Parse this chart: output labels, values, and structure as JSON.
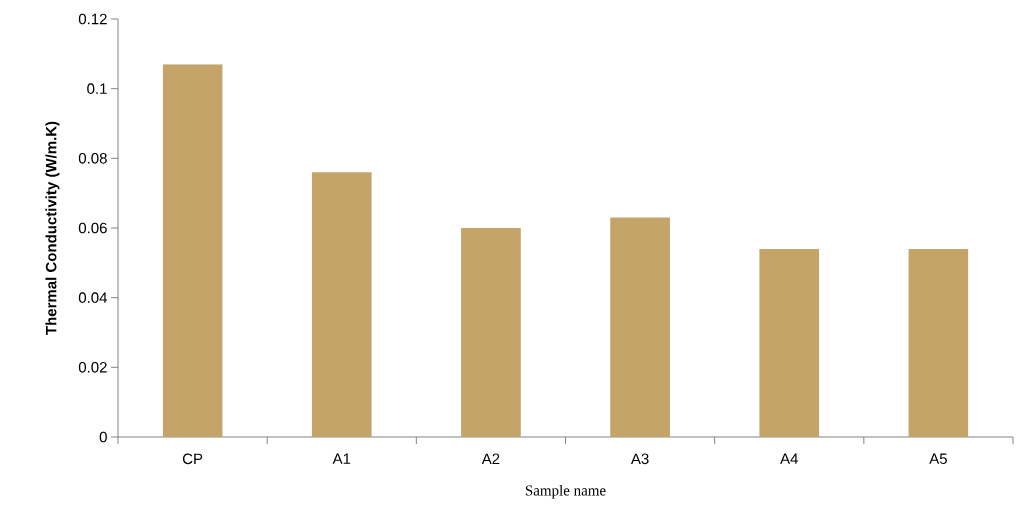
{
  "chart_data": {
    "type": "bar",
    "xlabel": "Sample name",
    "ylabel": "Thermal Conductivity (W/m.K)",
    "categories": [
      "CP",
      "A1",
      "A2",
      "A3",
      "A4",
      "A5"
    ],
    "values": [
      0.107,
      0.076,
      0.06,
      0.063,
      0.054,
      0.054
    ],
    "color": "#c4a468",
    "ylim": [
      0,
      0.12
    ],
    "yticks": [
      0,
      0.02,
      0.04,
      0.06,
      0.08,
      0.1,
      0.12
    ]
  }
}
